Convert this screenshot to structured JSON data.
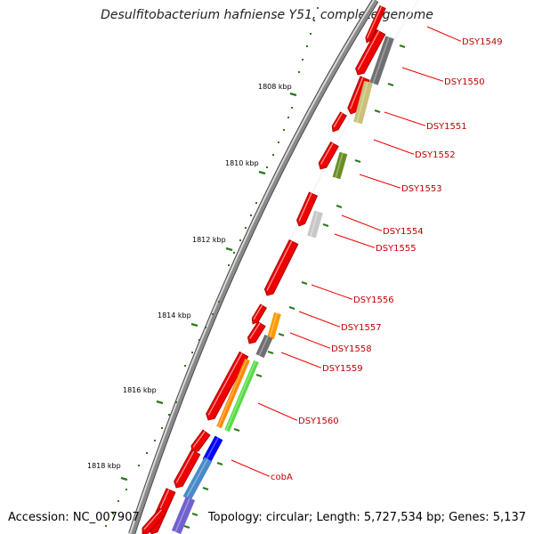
{
  "title": "Desulfitobacterium hafniense Y51, complete genome",
  "footer": {
    "accession": "Accession: NC_007907",
    "summary": "Topology: circular; Length: 5,727,534 bp; Genes: 5,137"
  },
  "colors": {
    "forward_gene": "#ee0000",
    "backbone": "#8a8a8a",
    "tick": "#2a7a1a",
    "label_text": "#c00000",
    "leader_line": "#ee0000"
  },
  "scale_labels": [
    "1808 kbp",
    "1810 kbp",
    "1812 kbp",
    "1814 kbp",
    "1816 kbp",
    "1818 kbp"
  ],
  "gene_labels": [
    "DSY1549",
    "DSY1550",
    "DSY1551",
    "DSY1552",
    "DSY1553",
    "DSY1554",
    "DSY1555",
    "DSY1556",
    "DSY1557",
    "DSY1558",
    "DSY1559",
    "DSY1560",
    "cobA"
  ],
  "cog_features": [
    {
      "category": "gray",
      "color": "#707070"
    },
    {
      "category": "khaki",
      "color": "#c9c07a"
    },
    {
      "category": "olive",
      "color": "#6b8e23"
    },
    {
      "category": "light-gray",
      "color": "#c8c8c8"
    },
    {
      "category": "orange",
      "color": "#ff9900"
    },
    {
      "category": "gray",
      "color": "#707070"
    },
    {
      "category": "light-green",
      "color": "#55dd44"
    },
    {
      "category": "orange",
      "color": "#ff8800"
    },
    {
      "category": "blue",
      "color": "#0000ff"
    },
    {
      "category": "steel-blue",
      "color": "#4a8ac8"
    },
    {
      "category": "slate-blue",
      "color": "#7060d0"
    }
  ]
}
